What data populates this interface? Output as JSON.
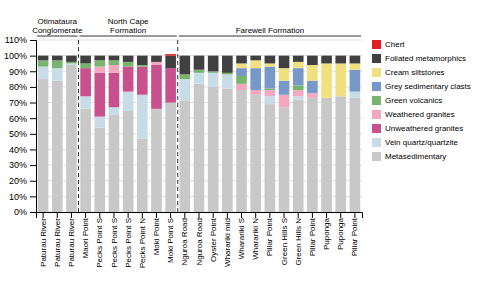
{
  "chart_data": {
    "type": "bar",
    "stacked": true,
    "categories": [
      "Paturau River",
      "Paturau River",
      "Paturau River",
      "Maori Point",
      "Pecks Point S",
      "Pecks Point S",
      "Pecks Point S",
      "Pecks Point N",
      "Moki Point",
      "Moki Point S",
      "Nguroa Road",
      "Nguroa Road",
      "Oyster Point",
      "Wharariki mid",
      "Wharariki S",
      "Wharariki N",
      "Pillar Point",
      "Green Hills S",
      "Green Hills N",
      "Pillar Point",
      "Puponga",
      "Puponga",
      "Pillar Point"
    ],
    "series": [
      {
        "name": "Metasedimentary",
        "color": "#c8c8c8",
        "values": [
          85,
          84,
          94,
          66,
          54,
          62,
          65,
          47,
          66,
          70,
          71,
          82,
          80,
          79,
          78,
          75,
          69,
          67,
          72,
          73,
          73,
          74,
          73
        ]
      },
      {
        "name": "Vein quartz/quartzite",
        "color": "#c8dce8",
        "values": [
          8,
          8,
          1,
          8,
          7,
          5,
          12,
          28,
          0,
          0,
          14,
          7,
          9,
          9,
          0,
          0,
          5,
          0,
          2,
          0,
          0,
          0,
          4
        ]
      },
      {
        "name": "Unweathered granites",
        "color": "#c8508c",
        "values": [
          0,
          0,
          0,
          18,
          28,
          22,
          16,
          18,
          28,
          22,
          0,
          0,
          0,
          0,
          0,
          0,
          0,
          0,
          0,
          0,
          0,
          0,
          0
        ]
      },
      {
        "name": "Weathered granites",
        "color": "#f4a8c0",
        "values": [
          0,
          0,
          0,
          0,
          4,
          5,
          0,
          0,
          2,
          0,
          0,
          0,
          0,
          0,
          4,
          3,
          4,
          8,
          4,
          3,
          0,
          0,
          0
        ]
      },
      {
        "name": "Green volcanics",
        "color": "#78b46e",
        "values": [
          4,
          5,
          1,
          3,
          4,
          3,
          3,
          1,
          0,
          0,
          3,
          2,
          1,
          1,
          5,
          0,
          1,
          0,
          3,
          0,
          0,
          0,
          0
        ]
      },
      {
        "name": "Grey sedimentary clasts",
        "color": "#7898c8",
        "values": [
          0,
          0,
          0,
          0,
          0,
          0,
          0,
          0,
          0,
          0,
          0,
          0,
          0,
          0,
          5,
          14,
          14,
          9,
          11,
          8,
          0,
          0,
          14
        ]
      },
      {
        "name": "Cream siltstones",
        "color": "#f0e080",
        "values": [
          0,
          0,
          0,
          0,
          0,
          0,
          0,
          0,
          0,
          0,
          0,
          0,
          0,
          0,
          3,
          5,
          2,
          8,
          4,
          10,
          22,
          21,
          4
        ]
      },
      {
        "name": "Foliated metamorphics",
        "color": "#404040",
        "values": [
          3,
          3,
          4,
          5,
          3,
          3,
          4,
          6,
          4,
          8,
          12,
          9,
          10,
          11,
          5,
          3,
          5,
          8,
          4,
          6,
          5,
          5,
          5
        ]
      },
      {
        "name": "Chert",
        "color": "#e02020",
        "values": [
          0,
          0,
          0,
          0,
          0,
          0,
          0,
          0,
          0,
          1,
          0,
          0,
          0,
          0,
          0,
          0,
          0,
          0,
          0,
          0,
          0,
          0,
          0
        ]
      }
    ],
    "groups": [
      {
        "label": "Otimataura\nConglomerate",
        "start": 0,
        "end": 2
      },
      {
        "label": "North Cape\nFormation",
        "start": 3,
        "end": 9
      },
      {
        "label": "Farewell Formation",
        "start": 10,
        "end": 22
      }
    ],
    "ylim": [
      0,
      110
    ],
    "yticks": [
      {
        "value": 0,
        "label": "0%"
      },
      {
        "value": 10,
        "label": "10%"
      },
      {
        "value": 20,
        "label": "20%"
      },
      {
        "value": 30,
        "label": "30%"
      },
      {
        "value": 40,
        "label": "40%"
      },
      {
        "value": 50,
        "label": "50%"
      },
      {
        "value": 60,
        "label": "60%"
      },
      {
        "value": 70,
        "label": "70%"
      },
      {
        "value": 80,
        "label": "80%"
      },
      {
        "value": 90,
        "label": "90%"
      },
      {
        "value": 100,
        "label": "100%"
      },
      {
        "value": 110,
        "label": "110%"
      }
    ],
    "grid": true,
    "legend": "right"
  }
}
